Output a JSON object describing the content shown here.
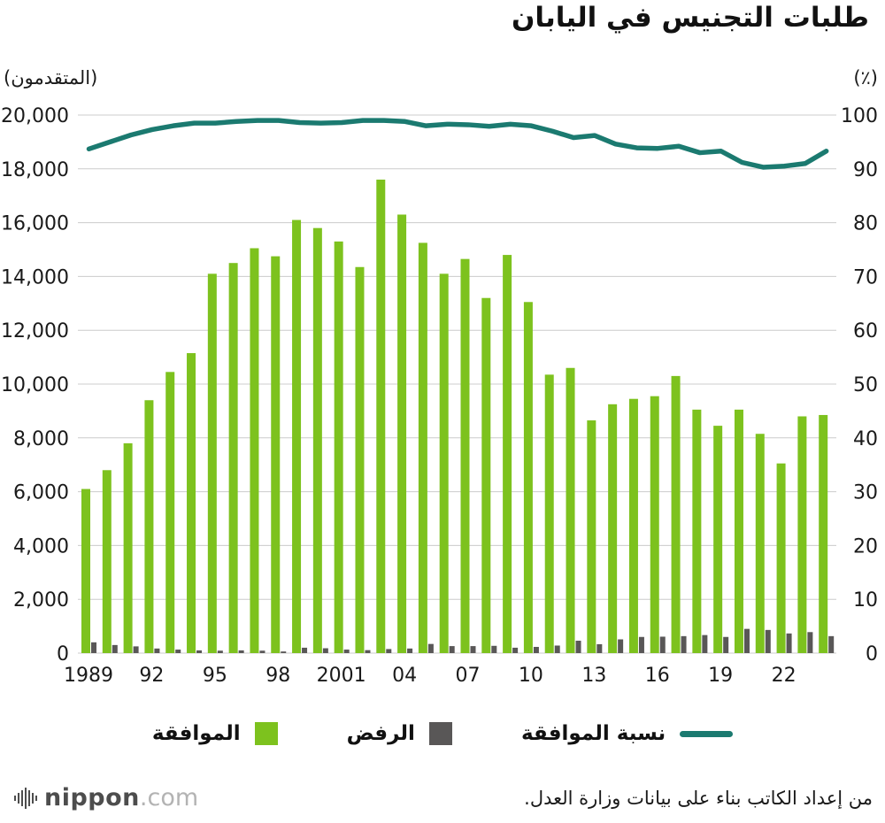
{
  "title": "طلبات التجنيس في اليابان",
  "left_axis_label": "(المتقدمون)",
  "right_axis_label": "(٪)",
  "legend": [
    {
      "label": "الموافقة",
      "type": "square",
      "color": "#7dc21e"
    },
    {
      "label": "الرفض",
      "type": "square",
      "color": "#595757"
    },
    {
      "label": "نسبة الموافقة",
      "type": "line",
      "color": "#1b7a70"
    }
  ],
  "source": "من إعداد الكاتب بناء على بيانات وزارة العدل.",
  "logo": {
    "main": "nippon",
    "suffix": ".com"
  },
  "colors": {
    "approvals": "#7dc21e",
    "rejections": "#595757",
    "rate_line": "#1b7a70",
    "grid": "#cccccc",
    "text": "#1a1a1a"
  },
  "chart_data": {
    "type": "bar",
    "note": "green/gray bars on left axis (applicants), teal line on right axis (%)",
    "years": [
      1989,
      1990,
      1991,
      1992,
      1993,
      1994,
      1995,
      1996,
      1997,
      1998,
      1999,
      2000,
      2001,
      2002,
      2003,
      2004,
      2005,
      2006,
      2007,
      2008,
      2009,
      2010,
      2011,
      2012,
      2013,
      2014,
      2015,
      2016,
      2017,
      2018,
      2019,
      2020,
      2021,
      2022,
      2023,
      2024
    ],
    "x_ticks": [
      {
        "year": 1989,
        "label": "1989"
      },
      {
        "year": 1992,
        "label": "92"
      },
      {
        "year": 1995,
        "label": "95"
      },
      {
        "year": 1998,
        "label": "98"
      },
      {
        "year": 2001,
        "label": "2001"
      },
      {
        "year": 2004,
        "label": "04"
      },
      {
        "year": 2007,
        "label": "07"
      },
      {
        "year": 2010,
        "label": "10"
      },
      {
        "year": 2013,
        "label": "13"
      },
      {
        "year": 2016,
        "label": "16"
      },
      {
        "year": 2019,
        "label": "19"
      },
      {
        "year": 2022,
        "label": "22"
      }
    ],
    "series": [
      {
        "name": "الموافقة",
        "type": "bar",
        "axis": "left",
        "color": "#7dc21e",
        "values": [
          6100,
          6800,
          7800,
          9400,
          10450,
          11150,
          14100,
          14500,
          15050,
          14750,
          16100,
          15800,
          15300,
          14350,
          17600,
          16300,
          15250,
          14100,
          14650,
          13200,
          14800,
          13050,
          10350,
          10600,
          8650,
          9250,
          9450,
          9550,
          10300,
          9050,
          8450,
          9050,
          8150,
          7050,
          8800,
          8850
        ]
      },
      {
        "name": "الرفض",
        "type": "bar",
        "axis": "left",
        "color": "#595757",
        "values": [
          400,
          300,
          250,
          170,
          130,
          100,
          90,
          100,
          90,
          60,
          200,
          180,
          130,
          110,
          150,
          170,
          340,
          260,
          260,
          270,
          200,
          230,
          280,
          460,
          330,
          510,
          600,
          610,
          630,
          670,
          600,
          900,
          860,
          730,
          780,
          630
        ]
      },
      {
        "name": "نسبة الموافقة",
        "type": "line",
        "axis": "right",
        "color": "#1b7a70",
        "values": [
          93.7,
          95.0,
          96.3,
          97.3,
          98.0,
          98.5,
          98.5,
          98.8,
          99.0,
          99.0,
          98.6,
          98.5,
          98.6,
          99.0,
          99.0,
          98.8,
          98.0,
          98.3,
          98.2,
          97.9,
          98.3,
          98.0,
          97.0,
          95.8,
          96.2,
          94.6,
          93.9,
          93.8,
          94.2,
          93.0,
          93.3,
          91.2,
          90.3,
          90.5,
          91.0,
          93.3
        ]
      }
    ],
    "left_axis": {
      "min": 0,
      "max": 20000,
      "step": 2000
    },
    "right_axis": {
      "min": 0,
      "max": 100,
      "step": 10
    },
    "grid": true,
    "legend_position": "bottom"
  }
}
